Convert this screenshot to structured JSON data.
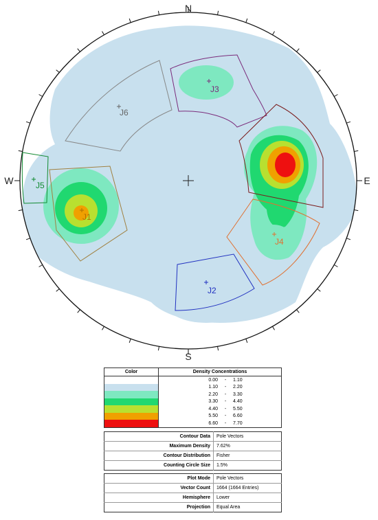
{
  "compass": {
    "north": "N",
    "south": "S",
    "east": "E",
    "west": "W"
  },
  "joint_sets": [
    {
      "id": "J1",
      "label": "J1",
      "color": "#b07000"
    },
    {
      "id": "J2",
      "label": "J2",
      "color": "#2030c0"
    },
    {
      "id": "J3",
      "label": "J3",
      "color": "#7a2a7a"
    },
    {
      "id": "J4",
      "label": "J4",
      "color": "#e07030"
    },
    {
      "id": "J5",
      "label": "J5",
      "color": "#108a30"
    },
    {
      "id": "J6",
      "label": "J6",
      "color": "#666666"
    }
  ],
  "density_legend": {
    "header_color": "Color",
    "header_density": "Density Concentrations",
    "rows": [
      {
        "from": "0.00",
        "to": "1.10",
        "color": "#ffffff"
      },
      {
        "from": "1.10",
        "to": "2.20",
        "color": "#c8e0ee"
      },
      {
        "from": "2.20",
        "to": "3.30",
        "color": "#7ee8c0"
      },
      {
        "from": "3.30",
        "to": "4.40",
        "color": "#20d870"
      },
      {
        "from": "4.40",
        "to": "5.50",
        "color": "#b8e030"
      },
      {
        "from": "5.50",
        "to": "6.60",
        "color": "#f0a000"
      },
      {
        "from": "6.60",
        "to": "7.70",
        "color": "#ee1010"
      }
    ],
    "dash": "-"
  },
  "contour_info": [
    {
      "key": "Contour Data",
      "value": "Pole Vectors"
    },
    {
      "key": "Maximum Density",
      "value": "7.62%"
    },
    {
      "key": "Contour Distribution",
      "value": "Fisher"
    },
    {
      "key": "Counting Circle Size",
      "value": "1.5%"
    }
  ],
  "plot_info": [
    {
      "key": "Plot Mode",
      "value": "Pole Vectors"
    },
    {
      "key": "Vector Count",
      "value": "1664 (1664 Entries)"
    },
    {
      "key": "Hemisphere",
      "value": "Lower"
    },
    {
      "key": "Projection",
      "value": "Equal Area"
    }
  ]
}
